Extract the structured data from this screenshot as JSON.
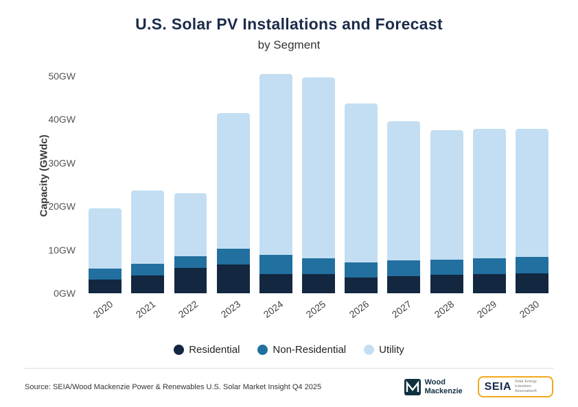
{
  "title": "U.S. Solar PV Installations and Forecast",
  "subtitle": "by Segment",
  "chart_data": {
    "type": "bar",
    "stacked": true,
    "title": "U.S. Solar PV Installations and Forecast",
    "subtitle": "by Segment",
    "xlabel": "",
    "ylabel": "Capacity (GWdc)",
    "ylim": [
      0,
      52
    ],
    "grid": false,
    "legend_position": "bottom",
    "categories": [
      "2020",
      "2021",
      "2022",
      "2023",
      "2024",
      "2025",
      "2026",
      "2027",
      "2028",
      "2029",
      "2030"
    ],
    "yticks": [
      0,
      10,
      20,
      30,
      40,
      50
    ],
    "ytick_labels": [
      "0GW",
      "10GW",
      "20GW",
      "30GW",
      "40GW",
      "50GW"
    ],
    "series": [
      {
        "name": "Residential",
        "color": "#132740",
        "values": [
          3.2,
          4.1,
          5.9,
          6.6,
          4.4,
          4.4,
          3.7,
          3.9,
          4.2,
          4.4,
          4.6
        ]
      },
      {
        "name": "Non-Residential",
        "color": "#21709f",
        "values": [
          2.4,
          2.7,
          2.6,
          3.6,
          4.4,
          3.7,
          3.4,
          3.7,
          3.6,
          3.6,
          3.7
        ]
      },
      {
        "name": "Utility",
        "color": "#c3def2",
        "values": [
          13.9,
          16.9,
          14.5,
          31.3,
          41.7,
          41.6,
          36.5,
          31.9,
          29.7,
          29.8,
          29.5
        ]
      }
    ]
  },
  "footer": {
    "source": "Source: SEIA/Wood Mackenzie Power & Renewables U.S. Solar Market Insight Q4 2025",
    "logos": {
      "woodmac": {
        "line1": "Wood",
        "line2": "Mackenzie"
      },
      "seia": {
        "name": "SEIA",
        "tagline": "Solar Energy Industries Association®"
      }
    }
  }
}
